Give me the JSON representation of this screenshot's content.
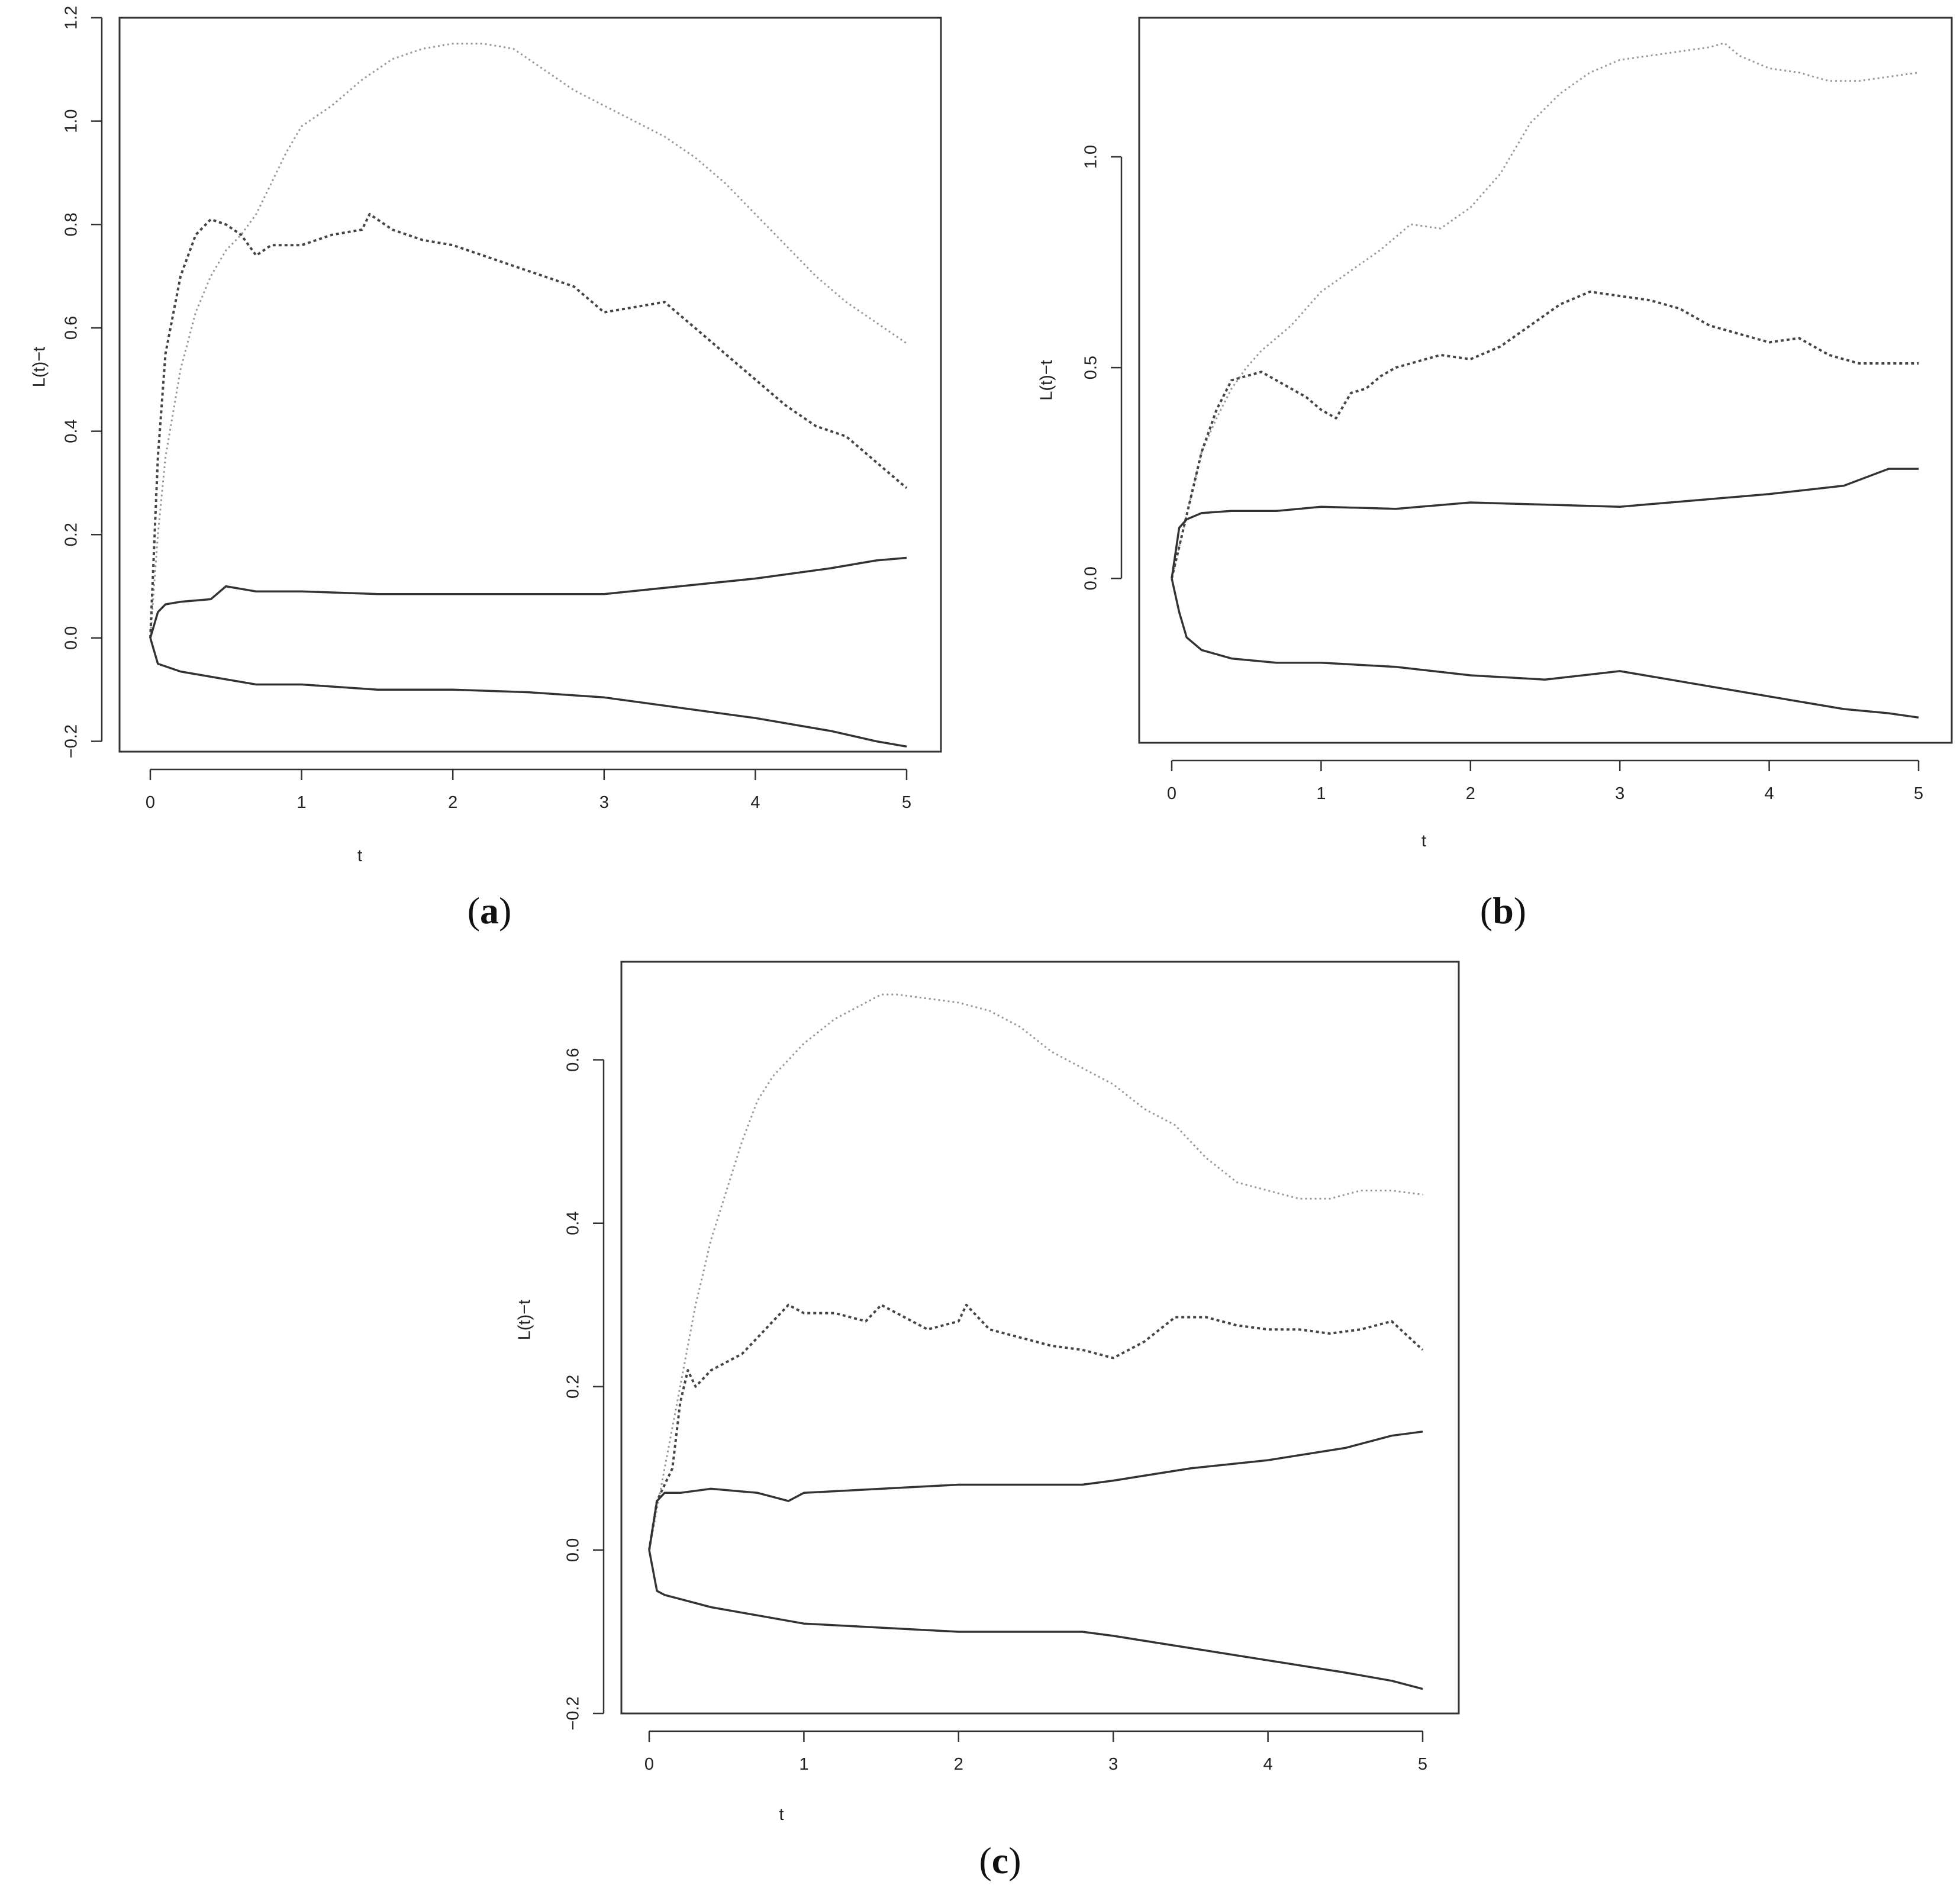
{
  "chart_data": [
    {
      "panel": "a",
      "type": "line",
      "caption": {
        "open": "(",
        "letter": "a",
        "close": ")"
      },
      "xlabel": "t",
      "ylabel": "L(t)−t",
      "xlim": [
        0,
        5
      ],
      "ylim": [
        -0.22,
        1.2
      ],
      "xticks": [
        "0",
        "1",
        "2",
        "3",
        "4",
        "5"
      ],
      "yticks": [
        "−0.2",
        "0.0",
        "0.2",
        "0.4",
        "0.6",
        "0.8",
        "1.0",
        "1.2"
      ],
      "series": [
        {
          "style": "dotted-light",
          "x": [
            0,
            0.05,
            0.1,
            0.2,
            0.3,
            0.4,
            0.5,
            0.6,
            0.7,
            0.8,
            0.9,
            1.0,
            1.2,
            1.4,
            1.6,
            1.8,
            2.0,
            2.2,
            2.4,
            2.6,
            2.8,
            3.0,
            3.2,
            3.4,
            3.6,
            3.8,
            4.0,
            4.2,
            4.4,
            4.6,
            4.8,
            5.0
          ],
          "y": [
            0.0,
            0.2,
            0.35,
            0.52,
            0.63,
            0.7,
            0.75,
            0.78,
            0.82,
            0.88,
            0.94,
            0.99,
            1.03,
            1.08,
            1.12,
            1.14,
            1.15,
            1.15,
            1.14,
            1.1,
            1.06,
            1.03,
            1.0,
            0.97,
            0.93,
            0.88,
            0.82,
            0.76,
            0.7,
            0.65,
            0.61,
            0.57
          ]
        },
        {
          "style": "dotted-dark",
          "x": [
            0,
            0.05,
            0.1,
            0.2,
            0.3,
            0.4,
            0.5,
            0.6,
            0.7,
            0.8,
            1.0,
            1.2,
            1.4,
            1.45,
            1.6,
            1.8,
            2.0,
            2.2,
            2.4,
            2.6,
            2.8,
            3.0,
            3.2,
            3.4,
            3.6,
            3.8,
            4.0,
            4.2,
            4.4,
            4.6,
            4.8,
            5.0
          ],
          "y": [
            0.0,
            0.35,
            0.55,
            0.7,
            0.78,
            0.81,
            0.8,
            0.78,
            0.74,
            0.76,
            0.76,
            0.78,
            0.79,
            0.82,
            0.79,
            0.77,
            0.76,
            0.74,
            0.72,
            0.7,
            0.68,
            0.63,
            0.64,
            0.65,
            0.6,
            0.55,
            0.5,
            0.45,
            0.41,
            0.39,
            0.34,
            0.29
          ]
        },
        {
          "style": "solid",
          "x": [
            0,
            0.05,
            0.1,
            0.2,
            0.4,
            0.5,
            0.7,
            1.0,
            1.5,
            2.0,
            2.5,
            3.0,
            3.5,
            4.0,
            4.5,
            4.8,
            5.0
          ],
          "y": [
            0.0,
            0.05,
            0.065,
            0.07,
            0.075,
            0.1,
            0.09,
            0.09,
            0.085,
            0.085,
            0.085,
            0.085,
            0.1,
            0.115,
            0.135,
            0.15,
            0.155
          ]
        },
        {
          "style": "solid",
          "x": [
            0,
            0.05,
            0.1,
            0.2,
            0.4,
            0.7,
            1.0,
            1.5,
            2.0,
            2.5,
            3.0,
            3.5,
            4.0,
            4.5,
            4.8,
            5.0
          ],
          "y": [
            0.0,
            -0.05,
            -0.055,
            -0.065,
            -0.075,
            -0.09,
            -0.09,
            -0.1,
            -0.1,
            -0.105,
            -0.115,
            -0.135,
            -0.155,
            -0.18,
            -0.2,
            -0.21
          ]
        }
      ]
    },
    {
      "panel": "b",
      "type": "line",
      "caption": {
        "open": "(",
        "letter": "b",
        "close": ")"
      },
      "xlabel": "t",
      "ylabel": "L(t)−t",
      "xlim": [
        0,
        5
      ],
      "ylim": [
        -0.39,
        1.33
      ],
      "xticks": [
        "0",
        "1",
        "2",
        "3",
        "4",
        "5"
      ],
      "yticks": [
        "0.0",
        "0.5",
        "1.0"
      ],
      "yticks_values": [
        0,
        0.5,
        1.0
      ],
      "series": [
        {
          "style": "dotted-light",
          "x": [
            0,
            0.1,
            0.2,
            0.3,
            0.4,
            0.5,
            0.6,
            0.8,
            1.0,
            1.2,
            1.4,
            1.6,
            1.8,
            2.0,
            2.2,
            2.4,
            2.6,
            2.8,
            3.0,
            3.2,
            3.4,
            3.6,
            3.7,
            3.8,
            4.0,
            4.2,
            4.4,
            4.6,
            4.8,
            5.0
          ],
          "y": [
            0.0,
            0.15,
            0.3,
            0.38,
            0.45,
            0.5,
            0.54,
            0.6,
            0.68,
            0.73,
            0.78,
            0.84,
            0.83,
            0.88,
            0.96,
            1.08,
            1.15,
            1.2,
            1.23,
            1.24,
            1.25,
            1.26,
            1.27,
            1.24,
            1.21,
            1.2,
            1.18,
            1.18,
            1.19,
            1.2
          ]
        },
        {
          "style": "dotted-dark",
          "x": [
            0,
            0.1,
            0.2,
            0.3,
            0.4,
            0.5,
            0.6,
            0.7,
            0.8,
            0.9,
            1.0,
            1.1,
            1.2,
            1.3,
            1.4,
            1.5,
            1.6,
            1.8,
            2.0,
            2.2,
            2.4,
            2.6,
            2.8,
            3.0,
            3.2,
            3.4,
            3.6,
            3.8,
            4.0,
            4.2,
            4.4,
            4.6,
            4.8,
            5.0
          ],
          "y": [
            0.0,
            0.15,
            0.3,
            0.4,
            0.47,
            0.48,
            0.49,
            0.47,
            0.45,
            0.43,
            0.4,
            0.38,
            0.44,
            0.45,
            0.48,
            0.5,
            0.51,
            0.53,
            0.52,
            0.55,
            0.6,
            0.65,
            0.68,
            0.67,
            0.66,
            0.64,
            0.6,
            0.58,
            0.56,
            0.57,
            0.53,
            0.51,
            0.51,
            0.51
          ]
        },
        {
          "style": "solid",
          "x": [
            0,
            0.05,
            0.1,
            0.2,
            0.4,
            0.7,
            1.0,
            1.5,
            2.0,
            2.5,
            3.0,
            3.5,
            4.0,
            4.5,
            4.8,
            5.0
          ],
          "y": [
            0.0,
            0.12,
            0.14,
            0.155,
            0.16,
            0.16,
            0.17,
            0.165,
            0.18,
            0.175,
            0.17,
            0.185,
            0.2,
            0.22,
            0.26,
            0.26
          ]
        },
        {
          "style": "solid",
          "x": [
            0,
            0.05,
            0.1,
            0.2,
            0.4,
            0.7,
            1.0,
            1.5,
            2.0,
            2.5,
            3.0,
            3.5,
            4.0,
            4.5,
            4.8,
            5.0
          ],
          "y": [
            0.0,
            -0.08,
            -0.14,
            -0.17,
            -0.19,
            -0.2,
            -0.2,
            -0.21,
            -0.23,
            -0.24,
            -0.22,
            -0.25,
            -0.28,
            -0.31,
            -0.32,
            -0.33
          ]
        }
      ]
    },
    {
      "panel": "c",
      "type": "line",
      "caption": {
        "open": "(",
        "letter": "c",
        "close": ")"
      },
      "xlabel": "t",
      "ylabel": "L(t)−t",
      "xlim": [
        0,
        5
      ],
      "ylim": [
        -0.2,
        0.72
      ],
      "xticks": [
        "0",
        "1",
        "2",
        "3",
        "4",
        "5"
      ],
      "yticks": [
        "−0.2",
        "0.0",
        "0.2",
        "0.4",
        "0.6"
      ],
      "series": [
        {
          "style": "dotted-light",
          "x": [
            0,
            0.05,
            0.1,
            0.2,
            0.3,
            0.4,
            0.5,
            0.6,
            0.7,
            0.8,
            0.9,
            1.0,
            1.2,
            1.4,
            1.5,
            1.6,
            1.8,
            2.0,
            2.2,
            2.4,
            2.6,
            2.8,
            3.0,
            3.2,
            3.4,
            3.6,
            3.8,
            4.0,
            4.2,
            4.4,
            4.6,
            4.8,
            5.0
          ],
          "y": [
            0.0,
            0.05,
            0.1,
            0.2,
            0.3,
            0.38,
            0.44,
            0.5,
            0.55,
            0.58,
            0.6,
            0.62,
            0.65,
            0.67,
            0.68,
            0.68,
            0.675,
            0.67,
            0.66,
            0.64,
            0.61,
            0.59,
            0.57,
            0.54,
            0.52,
            0.48,
            0.45,
            0.44,
            0.43,
            0.43,
            0.44,
            0.44,
            0.435
          ]
        },
        {
          "style": "dotted-dark",
          "x": [
            0,
            0.05,
            0.1,
            0.15,
            0.2,
            0.25,
            0.3,
            0.4,
            0.5,
            0.6,
            0.7,
            0.8,
            0.9,
            1.0,
            1.2,
            1.4,
            1.5,
            1.6,
            1.8,
            2.0,
            2.05,
            2.2,
            2.4,
            2.6,
            2.8,
            3.0,
            3.2,
            3.4,
            3.6,
            3.8,
            4.0,
            4.2,
            4.4,
            4.6,
            4.8,
            5.0
          ],
          "y": [
            0.0,
            0.06,
            0.08,
            0.1,
            0.18,
            0.22,
            0.2,
            0.22,
            0.23,
            0.24,
            0.26,
            0.28,
            0.3,
            0.29,
            0.29,
            0.28,
            0.3,
            0.29,
            0.27,
            0.28,
            0.3,
            0.27,
            0.26,
            0.25,
            0.245,
            0.235,
            0.255,
            0.285,
            0.285,
            0.275,
            0.27,
            0.27,
            0.265,
            0.27,
            0.28,
            0.245
          ]
        },
        {
          "style": "solid",
          "x": [
            0,
            0.05,
            0.1,
            0.2,
            0.4,
            0.7,
            0.9,
            1.0,
            1.5,
            2.0,
            2.5,
            2.8,
            3.0,
            3.5,
            4.0,
            4.5,
            4.8,
            5.0
          ],
          "y": [
            0.0,
            0.06,
            0.07,
            0.07,
            0.075,
            0.07,
            0.06,
            0.07,
            0.075,
            0.08,
            0.08,
            0.08,
            0.085,
            0.1,
            0.11,
            0.125,
            0.14,
            0.145
          ]
        },
        {
          "style": "solid",
          "x": [
            0,
            0.05,
            0.1,
            0.2,
            0.4,
            0.7,
            1.0,
            1.5,
            2.0,
            2.5,
            2.8,
            3.0,
            3.5,
            4.0,
            4.5,
            4.8,
            5.0
          ],
          "y": [
            0.0,
            -0.05,
            -0.055,
            -0.06,
            -0.07,
            -0.08,
            -0.09,
            -0.095,
            -0.1,
            -0.1,
            -0.1,
            -0.105,
            -0.12,
            -0.135,
            -0.15,
            -0.16,
            -0.17
          ]
        }
      ]
    }
  ],
  "colors": {
    "axis": "#333333",
    "solid_line": "#333333",
    "dotted_dark": "#444444",
    "dotted_light": "#999999"
  }
}
